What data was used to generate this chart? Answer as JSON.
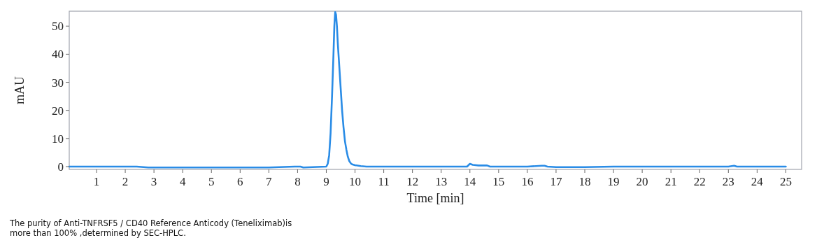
{
  "chart_data": {
    "type": "line",
    "xlabel": "Time [min]",
    "ylabel": "mAU",
    "xlim": [
      0.05,
      25.55
    ],
    "ylim": [
      -1,
      55.3
    ],
    "xticks": [
      1,
      2,
      3,
      4,
      5,
      6,
      7,
      8,
      9,
      10,
      11,
      12,
      13,
      14,
      15,
      16,
      17,
      18,
      19,
      20,
      21,
      22,
      23,
      24,
      25
    ],
    "yticks": [
      0,
      10,
      20,
      30,
      40,
      50
    ],
    "grid": false,
    "annotations": [
      "The purity of Anti-TNFRSF5 / CD40 Reference Anticody (Teneliximab)is more than 100% ,determined by SEC-HPLC."
    ],
    "series": [
      {
        "color": "#2a8ce6",
        "x": [
          0.05,
          1,
          2,
          2.4,
          2.8,
          4,
          5,
          6,
          7,
          7.9,
          8.1,
          8.2,
          9.0,
          9.05,
          9.1,
          9.15,
          9.2,
          9.25,
          9.28,
          9.31,
          9.34,
          9.37,
          9.4,
          9.45,
          9.5,
          9.55,
          9.6,
          9.65,
          9.7,
          9.75,
          9.8,
          9.85,
          9.9,
          10.0,
          10.2,
          10.4,
          11,
          12,
          13,
          13.9,
          14.0,
          14.1,
          14.3,
          14.6,
          14.7,
          15,
          16,
          16.5,
          16.6,
          16.7,
          17,
          18,
          19,
          20,
          21,
          22,
          23,
          23.2,
          23.3,
          24,
          25
        ],
        "values": [
          0,
          0,
          0,
          0,
          -0.3,
          -0.3,
          -0.3,
          -0.3,
          -0.3,
          0,
          0,
          -0.3,
          0,
          1,
          4,
          12,
          25,
          40,
          50,
          55,
          54,
          50,
          44,
          36,
          28,
          20,
          14,
          9,
          6,
          3.5,
          2,
          1.2,
          0.8,
          0.5,
          0.2,
          0,
          0,
          0,
          0,
          0,
          1,
          0.6,
          0.4,
          0.4,
          0,
          0,
          0,
          0.3,
          0.3,
          0,
          -0.2,
          -0.2,
          0,
          0,
          0,
          0,
          0,
          0.3,
          0,
          0,
          0
        ]
      }
    ]
  }
}
